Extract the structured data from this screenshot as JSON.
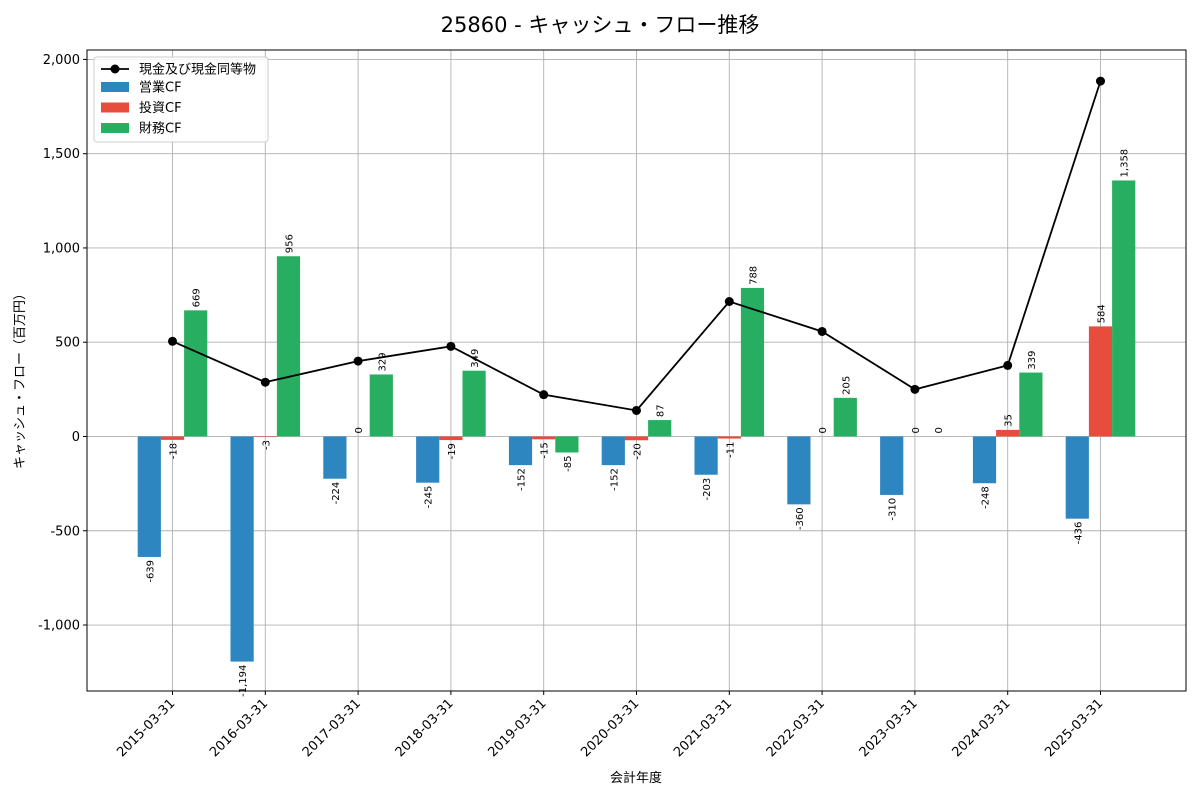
{
  "chart_data": {
    "type": "bar",
    "title": "25860 - キャッシュ・フロー推移",
    "xlabel": "会計年度",
    "ylabel": "キャッシュ・フロー（百万円）",
    "ylim": [
      -1350,
      2050
    ],
    "yticks": [
      -1000,
      -500,
      0,
      500,
      1000,
      1500,
      2000
    ],
    "ytick_labels": [
      "-1,000",
      "-500",
      "0",
      "500",
      "1,000",
      "1,500",
      "2,000"
    ],
    "grid": true,
    "legend_position": "top-left",
    "categories": [
      "2015-03-31",
      "2016-03-31",
      "2017-03-31",
      "2018-03-31",
      "2019-03-31",
      "2020-03-31",
      "2021-03-31",
      "2022-03-31",
      "2023-03-31",
      "2024-03-31",
      "2025-03-31"
    ],
    "series": [
      {
        "name": "営業CF",
        "kind": "bar",
        "color": "#2e86c1",
        "values": [
          -639,
          -1194,
          -224,
          -245,
          -152,
          -152,
          -203,
          -360,
          -310,
          -248,
          -436
        ],
        "labels": [
          "-639",
          "-1,194",
          "-224",
          "-245",
          "-152",
          "-152",
          "-203",
          "-360",
          "-310",
          "-248",
          "-436"
        ]
      },
      {
        "name": "投資CF",
        "kind": "bar",
        "color": "#e74c3c",
        "values": [
          -18,
          -3,
          0,
          -19,
          -15,
          -20,
          -11,
          0,
          0,
          35,
          584
        ],
        "labels": [
          "-18",
          "-3",
          "0",
          "-19",
          "-15",
          "-20",
          "-11",
          "0",
          "0",
          "35",
          "584"
        ]
      },
      {
        "name": "財務CF",
        "kind": "bar",
        "color": "#27ae60",
        "values": [
          669,
          956,
          329,
          349,
          -85,
          87,
          788,
          205,
          0,
          339,
          1358
        ],
        "labels": [
          "669",
          "956",
          "329",
          "349",
          "-85",
          "87",
          "788",
          "205",
          "0",
          "339",
          "1,358"
        ]
      },
      {
        "name": "現金及び現金同等物",
        "kind": "line",
        "color": "#000000",
        "values": [
          505,
          288,
          400,
          478,
          222,
          138,
          716,
          557,
          250,
          377,
          1885
        ]
      }
    ]
  }
}
